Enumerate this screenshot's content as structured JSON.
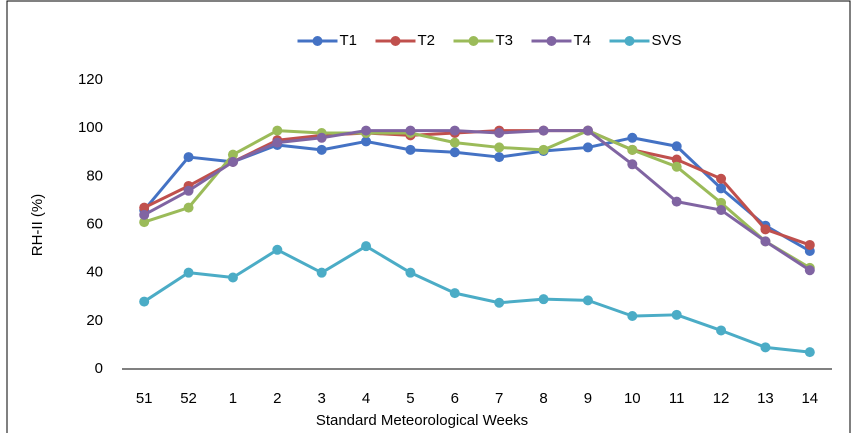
{
  "chart_data": {
    "type": "line",
    "categories": [
      "51",
      "52",
      "1",
      "2",
      "3",
      "4",
      "5",
      "6",
      "7",
      "8",
      "9",
      "10",
      "11",
      "12",
      "13",
      "14"
    ],
    "x_label": "Standard Meteorological Weeks",
    "y_label": "RH-II (%)",
    "ylim": [
      0,
      120
    ],
    "yticks": [
      0,
      20,
      40,
      60,
      80,
      100,
      120
    ],
    "grid": false,
    "legend": "top",
    "series": [
      {
        "name": "T1",
        "color": "#4472c4",
        "values": [
          66,
          88,
          86,
          93,
          91,
          94.5,
          91,
          90,
          88,
          90.5,
          92,
          96,
          92.5,
          75,
          59.5,
          49
        ]
      },
      {
        "name": "T2",
        "color": "#c0504d",
        "values": [
          67,
          76,
          86,
          95,
          97,
          98,
          97,
          98,
          99,
          99,
          99,
          91,
          87,
          79,
          58,
          51.5
        ]
      },
      {
        "name": "T3",
        "color": "#9bbb59",
        "values": [
          61,
          67,
          89,
          99,
          98,
          98,
          98,
          94,
          92,
          91,
          99,
          91,
          84,
          69,
          53,
          42
        ]
      },
      {
        "name": "T4",
        "color": "#8064a2",
        "values": [
          64,
          74,
          86,
          94,
          96,
          99,
          99,
          99,
          98,
          99,
          99,
          85,
          69.5,
          66,
          53,
          41
        ]
      },
      {
        "name": "SVS",
        "color": "#4bacc6",
        "values": [
          28,
          40,
          38,
          49.5,
          40,
          51,
          40,
          31.5,
          27.5,
          29,
          28.5,
          22,
          22.5,
          16,
          9,
          7
        ]
      }
    ]
  }
}
